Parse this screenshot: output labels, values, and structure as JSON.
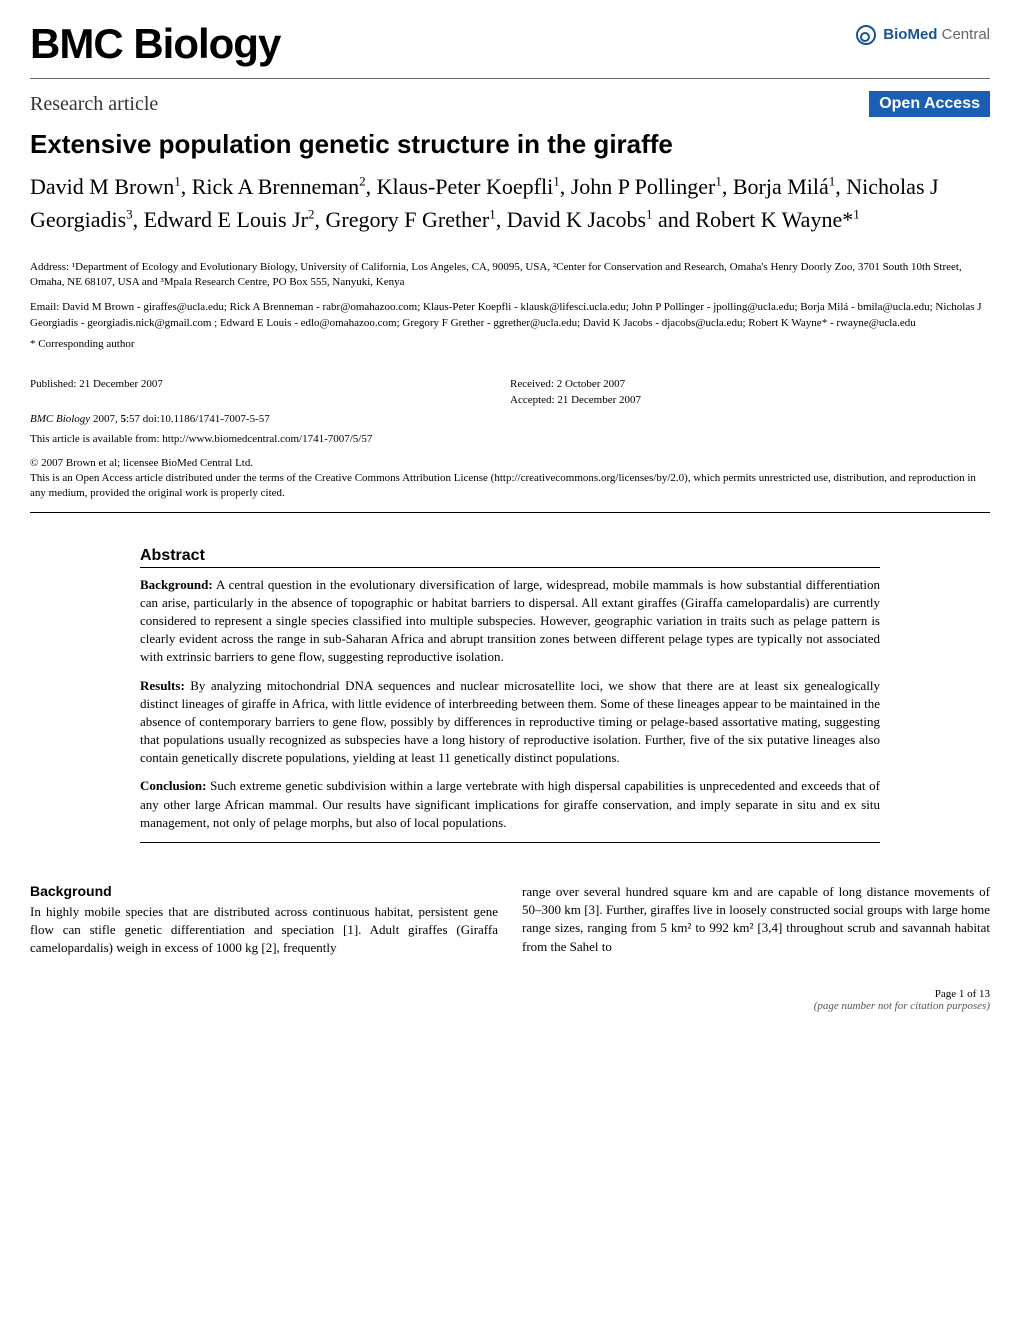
{
  "journal": {
    "name": "BMC Biology",
    "publisher_bold": "BioMed",
    "publisher_light": " Central"
  },
  "article": {
    "type": "Research article",
    "badge": "Open Access",
    "title": "Extensive population genetic structure in the giraffe",
    "authors_line1": "David M Brown",
    "authors_sup1": "1",
    "authors_line2": ", Rick A Brenneman",
    "authors_sup2": "2",
    "authors_line3": ", Klaus-Peter Koepfli",
    "authors_sup3": "1",
    "authors_line4": ", John P Pollinger",
    "authors_sup4": "1",
    "authors_line5": ", Borja Milá",
    "authors_sup5": "1",
    "authors_line6": ", Nicholas J Georgiadis",
    "authors_sup6": "3",
    "authors_line7": ", Edward E Louis Jr",
    "authors_sup7": "2",
    "authors_line8": ", Gregory F Grether",
    "authors_sup8": "1",
    "authors_line9": ", David K Jacobs",
    "authors_sup9": "1",
    "authors_line10": " and Robert K Wayne*",
    "authors_sup10": "1"
  },
  "affiliations": {
    "text": "Address: ¹Department of Ecology and Evolutionary Biology, University of California, Los Angeles, CA, 90095, USA, ²Center for Conservation and Research, Omaha's Henry Doorly Zoo, 3701 South 10th Street, Omaha, NE 68107, USA and ³Mpala Research Centre, PO Box 555, Nanyuki, Kenya"
  },
  "emails": {
    "text": "Email: David M Brown - giraffes@ucla.edu; Rick A Brenneman - rabr@omahazoo.com; Klaus-Peter Koepfli - klausk@lifesci.ucla.edu; John P Pollinger - jpolling@ucla.edu; Borja Milá - bmila@ucla.edu; Nicholas J Georgiadis - georgiadis.nick@gmail.com ; Edward E Louis - edlo@omahazoo.com; Gregory F Grether - ggrether@ucla.edu; David K Jacobs - djacobs@ucla.edu; Robert K Wayne* - rwayne@ucla.edu"
  },
  "corresponding": "* Corresponding author",
  "meta": {
    "published": "Published: 21 December 2007",
    "received": "Received: 2 October 2007",
    "accepted": "Accepted: 21 December 2007",
    "citation_journal": "BMC Biology",
    "citation_year": " 2007, ",
    "citation_vol": "5",
    "citation_rest": ":57    doi:10.1186/1741-7007-5-57",
    "url_label": "This article is available from: http://www.biomedcentral.com/1741-7007/5/57",
    "copyright": "© 2007 Brown et al; licensee BioMed Central Ltd.",
    "license": "This is an Open Access article distributed under the terms of the Creative Commons Attribution License (http://creativecommons.org/licenses/by/2.0), which permits unrestricted use, distribution, and reproduction in any medium, provided the original work is properly cited."
  },
  "abstract": {
    "heading": "Abstract",
    "background_label": "Background:",
    "background_text": " A central question in the evolutionary diversification of large, widespread, mobile mammals is how substantial differentiation can arise, particularly in the absence of topographic or habitat barriers to dispersal. All extant giraffes (Giraffa camelopardalis) are currently considered to represent a single species classified into multiple subspecies. However, geographic variation in traits such as pelage pattern is clearly evident across the range in sub-Saharan Africa and abrupt transition zones between different pelage types are typically not associated with extrinsic barriers to gene flow, suggesting reproductive isolation.",
    "results_label": "Results:",
    "results_text": " By analyzing mitochondrial DNA sequences and nuclear microsatellite loci, we show that there are at least six genealogically distinct lineages of giraffe in Africa, with little evidence of interbreeding between them. Some of these lineages appear to be maintained in the absence of contemporary barriers to gene flow, possibly by differences in reproductive timing or pelage-based assortative mating, suggesting that populations usually recognized as subspecies have a long history of reproductive isolation. Further, five of the six putative lineages also contain genetically discrete populations, yielding at least 11 genetically distinct populations.",
    "conclusion_label": "Conclusion:",
    "conclusion_text": " Such extreme genetic subdivision within a large vertebrate with high dispersal capabilities is unprecedented and exceeds that of any other large African mammal. Our results have significant implications for giraffe conservation, and imply separate in situ and ex situ management, not only of pelage morphs, but also of local populations."
  },
  "body": {
    "heading": "Background",
    "text_left": "In highly mobile species that are distributed across continuous habitat, persistent gene flow can stifle genetic differentiation and speciation [1]. Adult giraffes (Giraffa camelopardalis) weigh in excess of 1000 kg [2], frequently",
    "text_right": "range over several hundred square km and are capable of long distance movements of 50–300 km [3]. Further, giraffes live in loosely constructed social groups with large home range sizes, ranging from 5 km² to 992 km² [3,4] throughout scrub and savannah habitat from the Sahel to"
  },
  "footer": {
    "page": "Page 1 of 13",
    "note": "(page number not for citation purposes)"
  },
  "colors": {
    "open_access_bg": "#1a5fb4",
    "open_access_fg": "#ffffff",
    "publisher_blue": "#1a5490",
    "text": "#000000",
    "bg": "#ffffff",
    "rule": "#666666"
  },
  "fonts": {
    "journal_title_size": 42,
    "article_title_size": 26,
    "authors_size": 22,
    "body_size": 13,
    "small_size": 11
  }
}
